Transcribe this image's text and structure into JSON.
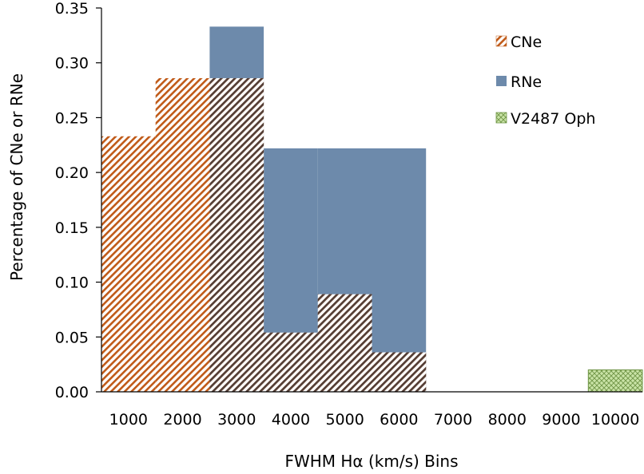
{
  "chart_data": {
    "type": "bar",
    "categories": [
      "1000",
      "2000",
      "3000",
      "4000",
      "5000",
      "6000",
      "7000",
      "8000",
      "9000",
      "10000"
    ],
    "series": [
      {
        "name": "RNe",
        "values": [
          0,
          0,
          0.333,
          0.222,
          0.222,
          0.222,
          0,
          0,
          0,
          0
        ],
        "color": "#6d8aab",
        "pattern": "solid"
      },
      {
        "name": "CNe",
        "values": [
          0.233,
          0.286,
          0.286,
          0.054,
          0.089,
          0.036,
          0,
          0,
          0,
          0
        ],
        "color": "#c05a18",
        "pattern": "diagonal-hatch"
      },
      {
        "name": "V2487 Oph",
        "values": [
          0,
          0,
          0,
          0,
          0,
          0,
          0,
          0,
          0,
          0.02
        ],
        "color": "#b5d98b",
        "pattern": "crosshatch"
      }
    ],
    "legend_order": [
      "CNe",
      "RNe",
      "V2487 Oph"
    ],
    "legend_position": "top-right",
    "xlabel": "FWHM Hα (km/s) Bins",
    "ylabel": "Percentage of CNe or RNe",
    "ylim": [
      0,
      0.35
    ],
    "yticks": [
      "0.00",
      "0.05",
      "0.10",
      "0.15",
      "0.20",
      "0.25",
      "0.30",
      "0.35"
    ],
    "grid": false
  }
}
